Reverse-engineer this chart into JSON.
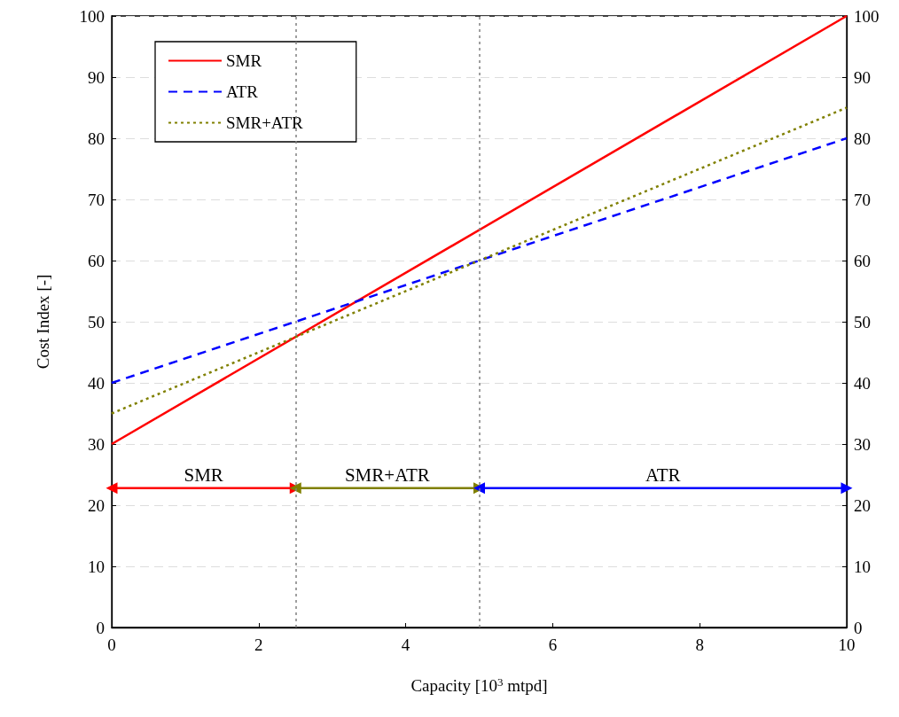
{
  "chart_data": {
    "type": "line",
    "xlabel": "Capacity [10$^{3}$ mtpd]",
    "ylabel": "Cost Index [-]",
    "x": [
      0,
      10
    ],
    "series": [
      {
        "name": "SMR",
        "color": "#ff0000",
        "values": [
          30,
          100
        ],
        "line_style": "solid"
      },
      {
        "name": "ATR",
        "color": "#0000ff",
        "values": [
          40,
          80
        ],
        "line_style": "dashed"
      },
      {
        "name": "SMR+ATR",
        "color": "#808000",
        "values": [
          35,
          85
        ],
        "line_style": "dotted"
      },
      {
        "color": "#ff0000",
        "x": [
          0,
          2.5
        ],
        "values": [
          22.8,
          22.8
        ],
        "line_style": "solid",
        "marker": "triangle"
      },
      {
        "color": "#808000",
        "x": [
          2.5,
          5
        ],
        "values": [
          22.8,
          22.8
        ],
        "line_style": "solid",
        "marker": "triangle"
      },
      {
        "color": "#0000ff",
        "x": [
          5,
          10
        ],
        "values": [
          22.8,
          22.8
        ],
        "line_style": "solid",
        "marker": "triangle"
      }
    ],
    "annotations": [
      {
        "text": "SMR",
        "x": 1.25,
        "y": 22.8
      },
      {
        "text": "SMR+ATR",
        "x": 3.75,
        "y": 22.8
      },
      {
        "text": "ATR",
        "x": 7.5,
        "y": 22.8
      }
    ],
    "xlim": [
      0,
      10
    ],
    "xticks": [
      0,
      2,
      4,
      6,
      8,
      10
    ],
    "ylim": [
      0,
      100
    ],
    "yticks": [
      0,
      10,
      20,
      30,
      40,
      50,
      60,
      70,
      80,
      90,
      100
    ],
    "y2lim": [
      0,
      100
    ],
    "y2ticks": [
      0,
      10,
      20,
      30,
      40,
      50,
      60,
      70,
      80,
      90,
      100
    ],
    "ref_lines": [
      {
        "axis": "x",
        "value": 2.5,
        "color": "#808080",
        "line_style": "dotted"
      },
      {
        "axis": "x",
        "value": 5,
        "color": "#808080",
        "line_style": "dotted"
      }
    ],
    "grid": "y",
    "legend": "top left",
    "marker": "none"
  }
}
